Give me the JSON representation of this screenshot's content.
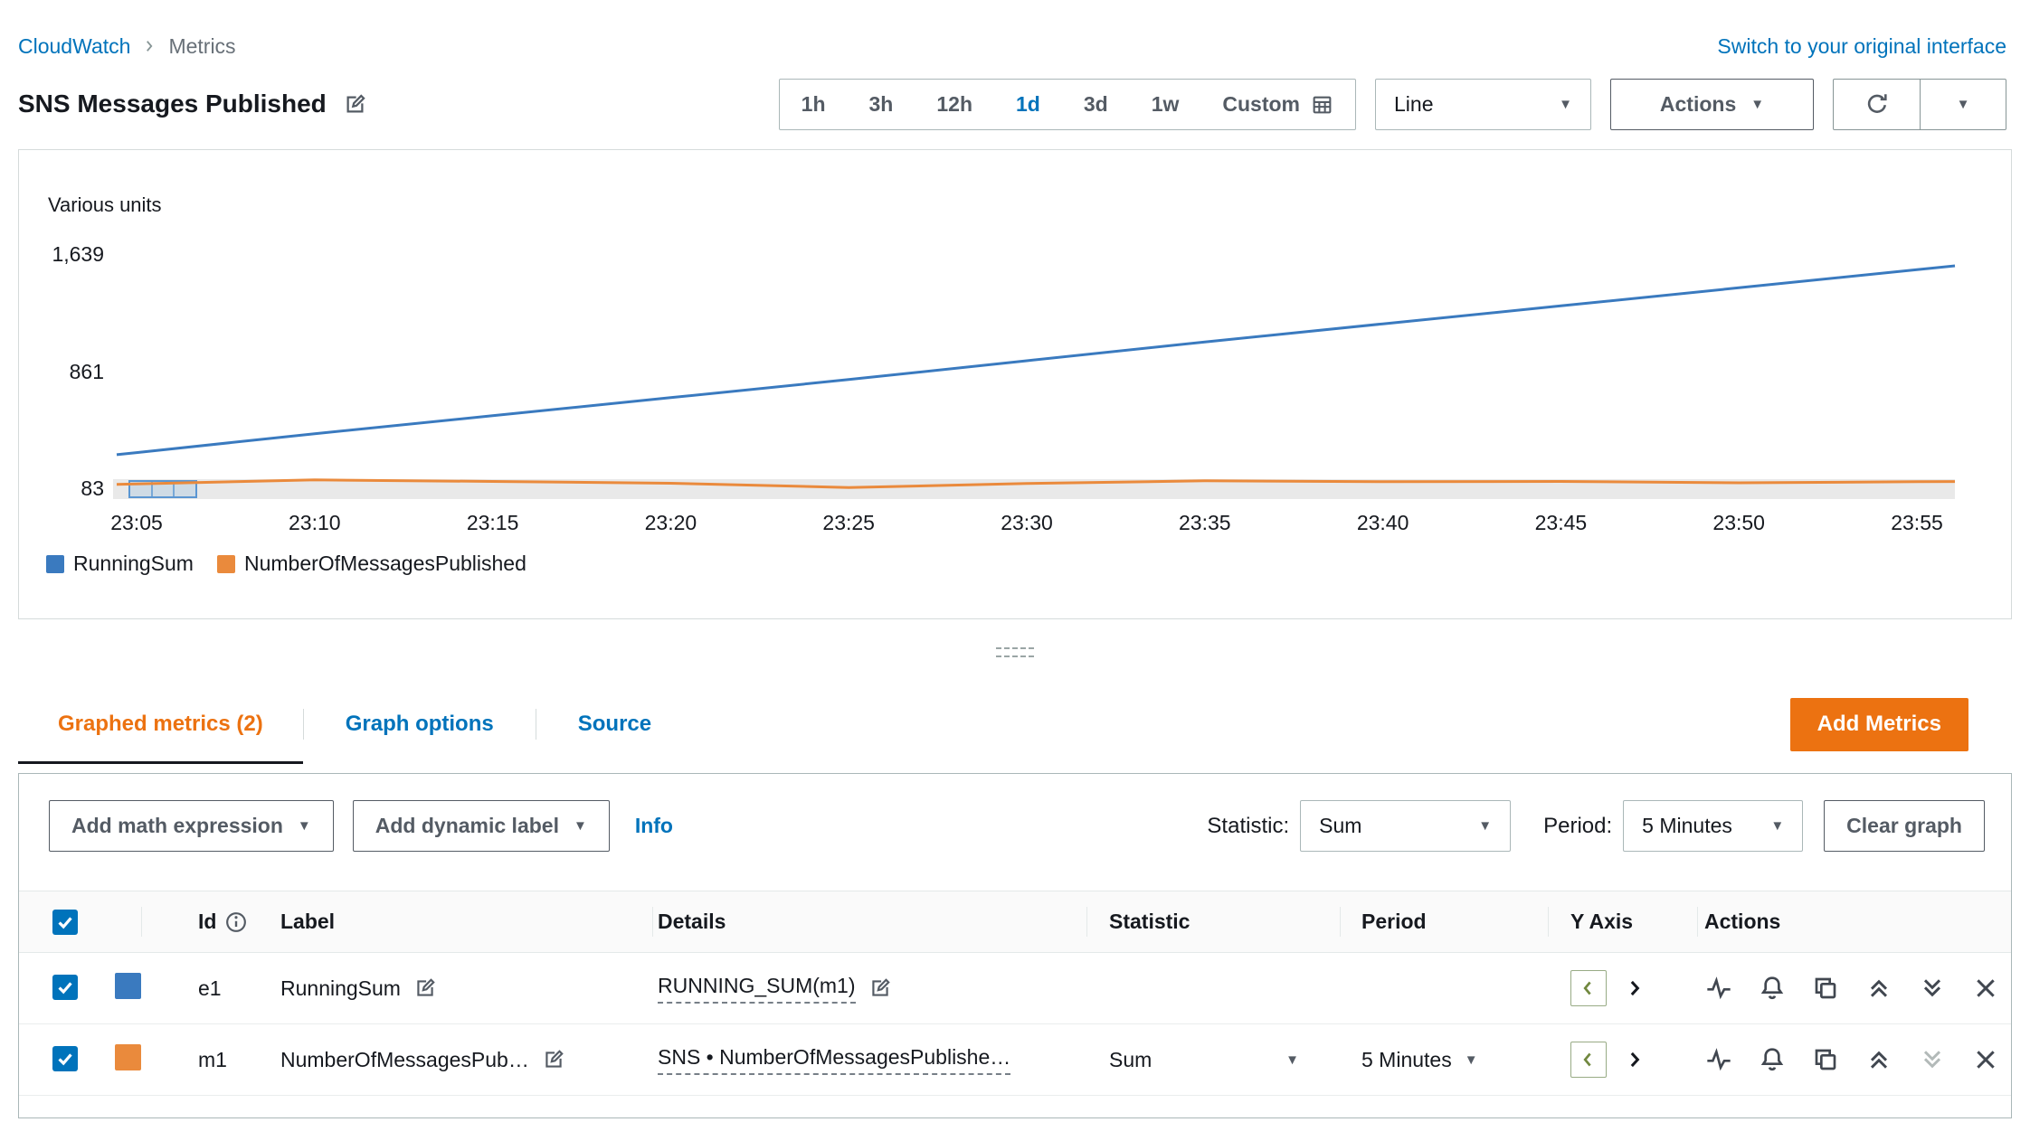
{
  "breadcrumb": {
    "root": "CloudWatch",
    "current": "Metrics"
  },
  "topbar": {
    "switch_link": "Switch to your original interface"
  },
  "header": {
    "title": "SNS Messages Published"
  },
  "time_controls": {
    "ranges": [
      "1h",
      "3h",
      "12h",
      "1d",
      "3d",
      "1w"
    ],
    "selected": "1d",
    "custom": "Custom",
    "chart_type": "Line",
    "actions": "Actions"
  },
  "chart": {
    "units_label": "Various units",
    "y_labels": [
      "1,639",
      "861",
      "83"
    ]
  },
  "chart_data": {
    "type": "line",
    "title": "SNS Messages Published",
    "ylabel": "Various units",
    "x": [
      "23:05",
      "23:10",
      "23:15",
      "23:20",
      "23:25",
      "23:30",
      "23:35",
      "23:40",
      "23:45",
      "23:50",
      "23:55"
    ],
    "ylim": [
      83,
      1639
    ],
    "y_ticks": [
      83,
      861,
      1639
    ],
    "grid": false,
    "legend_position": "bottom",
    "series": [
      {
        "name": "RunningSum",
        "color": "#3a7abf",
        "values": [
          320,
          445,
          565,
          685,
          805,
          930,
          1055,
          1175,
          1295,
          1415,
          1535
        ]
      },
      {
        "name": "NumberOfMessagesPublished",
        "color": "#ea8a3c",
        "values": [
          112,
          138,
          128,
          116,
          88,
          114,
          132,
          126,
          128,
          119,
          126
        ]
      }
    ]
  },
  "tabs": {
    "graphed": "Graphed metrics (2)",
    "options": "Graph options",
    "source": "Source"
  },
  "add_metrics": "Add Metrics",
  "toolbar": {
    "add_math": "Add math expression",
    "add_dynamic": "Add dynamic label",
    "info": "Info",
    "statistic_label": "Statistic:",
    "statistic_value": "Sum",
    "period_label": "Period:",
    "period_value": "5 Minutes",
    "clear": "Clear graph"
  },
  "table": {
    "headers": {
      "id": "Id",
      "label": "Label",
      "details": "Details",
      "statistic": "Statistic",
      "period": "Period",
      "yaxis": "Y Axis",
      "actions": "Actions"
    },
    "rows": [
      {
        "id": "e1",
        "label": "RunningSum",
        "details": "RUNNING_SUM(m1)",
        "statistic": "",
        "period": ""
      },
      {
        "id": "m1",
        "label": "NumberOfMessagesPub…",
        "details": "SNS • NumberOfMessagesPublishe…",
        "statistic": "Sum",
        "period": "5 Minutes"
      }
    ]
  }
}
